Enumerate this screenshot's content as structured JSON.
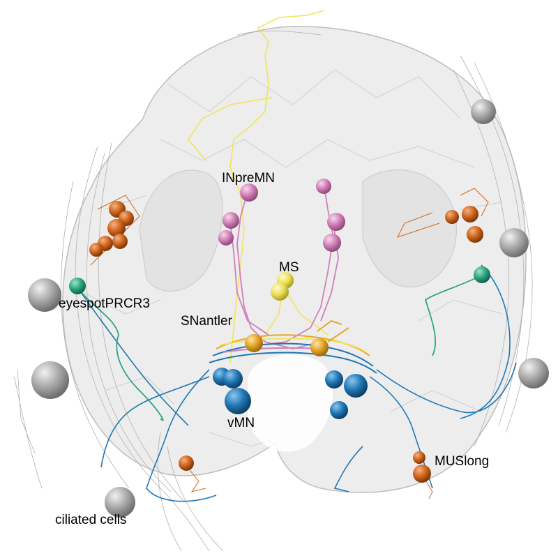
{
  "colors": {
    "background": "#ffffff",
    "body_fill": "#e6e6e6",
    "body_edge": "#bdbdbd",
    "ciliated": "#9a9a9a",
    "INpreMN": "#d17fb8",
    "MS": "#f1e45a",
    "SNantler": "#e7a824",
    "vMN": "#1f77b4",
    "MUSlong": "#d2661a",
    "eyespotPRCR3": "#2ca57e",
    "gray_neurite": "#b0b0b0"
  },
  "labels": {
    "INpreMN": "INpreMN",
    "MS": "MS",
    "SNantler": "SNantler",
    "eyespotPRCR3": "eyespotPRCR3",
    "vMN": "vMN",
    "MUSlong": "MUSlong",
    "ciliated": "ciliated cells"
  },
  "icons": {
    "cell": "sphere-icon"
  }
}
